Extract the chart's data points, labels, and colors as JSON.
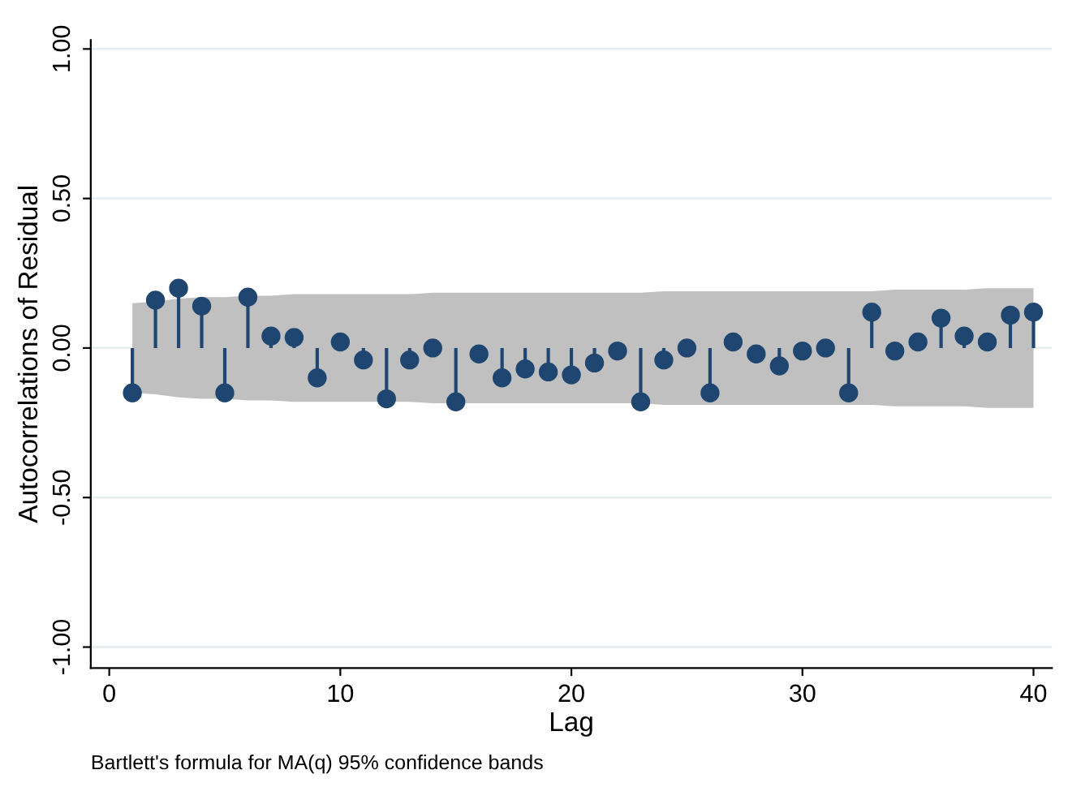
{
  "chart_data": {
    "type": "lollipop",
    "xlabel": "Lag",
    "ylabel": "Autocorrelations of Residual",
    "annotations": [
      "Bartlett's formula for MA(q) 95% confidence bands"
    ],
    "x": [
      1,
      2,
      3,
      4,
      5,
      6,
      7,
      8,
      9,
      10,
      11,
      12,
      13,
      14,
      15,
      16,
      17,
      18,
      19,
      20,
      21,
      22,
      23,
      24,
      25,
      26,
      27,
      28,
      29,
      30,
      31,
      32,
      33,
      34,
      35,
      36,
      37,
      38,
      39,
      40
    ],
    "series": [
      {
        "color": "#1f4670",
        "marker": "circle",
        "values": [
          -0.15,
          0.16,
          0.2,
          0.14,
          -0.15,
          0.17,
          0.04,
          0.035,
          -0.1,
          0.02,
          -0.04,
          -0.17,
          -0.04,
          0.0,
          -0.18,
          -0.02,
          -0.1,
          -0.07,
          -0.08,
          -0.09,
          -0.05,
          -0.01,
          -0.18,
          -0.04,
          0.0,
          -0.15,
          0.02,
          -0.02,
          -0.06,
          -0.01,
          0.0,
          -0.15,
          0.12,
          -0.01,
          0.02,
          0.1,
          0.04,
          0.02,
          0.11,
          0.12
        ],
        "upper": [
          0.15,
          0.155,
          0.165,
          0.17,
          0.17,
          0.175,
          0.175,
          0.18,
          0.18,
          0.18,
          0.18,
          0.18,
          0.18,
          0.185,
          0.185,
          0.185,
          0.185,
          0.185,
          0.185,
          0.185,
          0.185,
          0.185,
          0.185,
          0.19,
          0.19,
          0.19,
          0.19,
          0.19,
          0.19,
          0.19,
          0.19,
          0.19,
          0.19,
          0.195,
          0.195,
          0.195,
          0.195,
          0.2,
          0.2,
          0.2
        ],
        "lower": [
          -0.15,
          -0.155,
          -0.165,
          -0.17,
          -0.17,
          -0.175,
          -0.175,
          -0.18,
          -0.18,
          -0.18,
          -0.18,
          -0.18,
          -0.18,
          -0.185,
          -0.185,
          -0.185,
          -0.185,
          -0.185,
          -0.185,
          -0.185,
          -0.185,
          -0.185,
          -0.185,
          -0.19,
          -0.19,
          -0.19,
          -0.19,
          -0.19,
          -0.19,
          -0.19,
          -0.19,
          -0.19,
          -0.19,
          -0.195,
          -0.195,
          -0.195,
          -0.195,
          -0.2,
          -0.2,
          -0.2
        ]
      }
    ],
    "xlim": [
      -0.8,
      40.8
    ],
    "xticks": [
      0,
      10,
      20,
      30,
      40
    ],
    "ylim": [
      -1.07,
      1.03
    ],
    "yticks": [
      {
        "value": -1,
        "label": "-1.00"
      },
      {
        "value": -0.5,
        "label": "-0.50"
      },
      {
        "value": 0,
        "label": "0.00"
      },
      {
        "value": 0.5,
        "label": "0.50"
      },
      {
        "value": 1,
        "label": "1.00"
      }
    ],
    "grid": "y"
  }
}
